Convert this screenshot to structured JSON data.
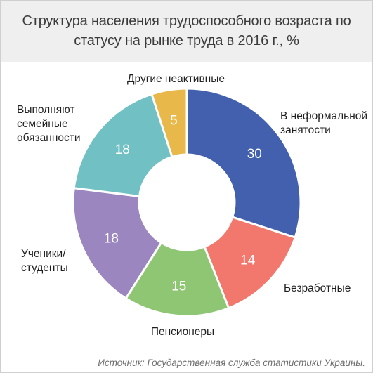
{
  "chart_data": {
    "type": "pie",
    "title": [
      "Структура населения трудоспособного возраста по",
      "статусу на рынке труда в 2016 г., %"
    ],
    "categories": [
      "В неформальной занятости",
      "Безработные",
      "Пенсионеры",
      "Ученики/ студенты",
      "Выполняют семейные обязанности",
      "Другие неактивные"
    ],
    "values": [
      30,
      14,
      15,
      18,
      18,
      5
    ],
    "label_lines": [
      [
        "В неформальной",
        "занятости"
      ],
      [
        "Безработные"
      ],
      [
        "Пенсионеры"
      ],
      [
        "Ученики/",
        "студенты"
      ],
      [
        "Выполняют",
        "семейные",
        "обязанности"
      ],
      [
        "Другие неактивные"
      ]
    ],
    "colors": [
      "#4260ad",
      "#f2776c",
      "#8fc673",
      "#9b86c0",
      "#70c0c4",
      "#e8b94a"
    ],
    "value_colors": [
      "#ffffff",
      "#ffffff",
      "#ffffff",
      "#ffffff",
      "#ffffff",
      "#ffffff"
    ],
    "donut": true,
    "start": "12 o'clock, clockwise",
    "legend": "none (labels beside slices)"
  },
  "source": "Источник: Государственная служба статистики Украины."
}
